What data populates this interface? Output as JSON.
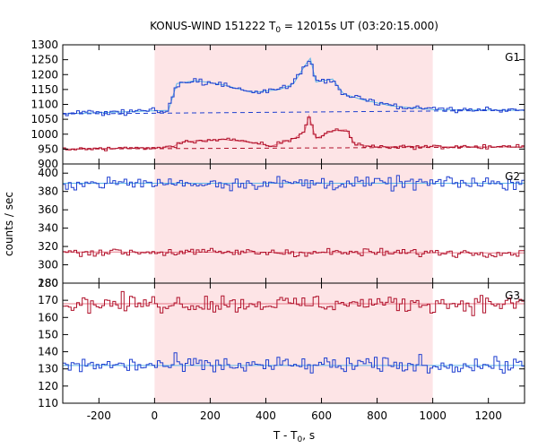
{
  "chart_data": {
    "type": "line",
    "title_main": "KONUS-WIND 151222 T",
    "title_sub": "0",
    "title_rest": " = 12015s UT (03:20:15.000)",
    "xlabel_main": "T - T",
    "xlabel_sub": "0",
    "xlabel_rest": ", s",
    "ylabel": "counts / sec",
    "xlim": [
      -330,
      1330
    ],
    "x_ticks": [
      -200,
      0,
      200,
      400,
      600,
      800,
      1000,
      1200
    ],
    "x_tick_labels": [
      "-200",
      "0",
      "200",
      "400",
      "600",
      "800",
      "1000",
      "1200"
    ],
    "shaded_interval": [
      0,
      1000
    ],
    "colors": {
      "shade": "#fde4e6",
      "g_high": "#1f3fd0",
      "g_high_smooth": "#5fb8e8",
      "g_low": "#b0102a",
      "g_low_smooth": "#e87888",
      "frame": "#000000"
    },
    "panels": [
      {
        "label": "G1",
        "ylim": [
          900,
          1300
        ],
        "y_ticks": [
          900,
          950,
          1000,
          1050,
          1100,
          1150,
          1200,
          1250,
          1300
        ],
        "y_tick_labels": [
          "900",
          "950",
          "1000",
          "1050",
          "1100",
          "1150",
          "1200",
          "1250",
          "1300"
        ],
        "series": [
          {
            "role": "high",
            "background": [
              [
                -330,
                1068
              ],
              [
                1330,
                1080
              ]
            ],
            "shape": [
              [
                -330,
                1068
              ],
              [
                50,
                1080
              ],
              [
                80,
                1170
              ],
              [
                150,
                1180
              ],
              [
                250,
                1165
              ],
              [
                350,
                1140
              ],
              [
                450,
                1150
              ],
              [
                500,
                1170
              ],
              [
                540,
                1230
              ],
              [
                560,
                1255
              ],
              [
                580,
                1175
              ],
              [
                640,
                1185
              ],
              [
                680,
                1135
              ],
              [
                750,
                1115
              ],
              [
                850,
                1095
              ],
              [
                1000,
                1082
              ],
              [
                1330,
                1080
              ]
            ],
            "noise": 7
          },
          {
            "role": "low",
            "background": [
              [
                -330,
                950
              ],
              [
                1330,
                957
              ]
            ],
            "shape": [
              [
                -330,
                950
              ],
              [
                60,
                955
              ],
              [
                100,
                975
              ],
              [
                250,
                982
              ],
              [
                350,
                972
              ],
              [
                420,
                960
              ],
              [
                500,
                985
              ],
              [
                540,
                1010
              ],
              [
                555,
                1062
              ],
              [
                580,
                985
              ],
              [
                640,
                1012
              ],
              [
                690,
                1015
              ],
              [
                720,
                965
              ],
              [
                800,
                958
              ],
              [
                1330,
                957
              ]
            ],
            "noise": 5
          }
        ]
      },
      {
        "label": "G2",
        "ylim": [
          280,
          410
        ],
        "y_ticks": [
          280,
          300,
          320,
          340,
          360,
          380,
          400
        ],
        "y_tick_labels": [
          "280",
          "300",
          "320",
          "340",
          "360",
          "380",
          "400"
        ],
        "series": [
          {
            "role": "high",
            "background": [
              [
                -330,
                389
              ],
              [
                1330,
                389
              ]
            ],
            "shape": [
              [
                -330,
                389
              ],
              [
                1330,
                389
              ]
            ],
            "noise": 5
          },
          {
            "role": "low",
            "background": [
              [
                -330,
                314
              ],
              [
                1330,
                313
              ]
            ],
            "shape": [
              [
                -330,
                314
              ],
              [
                1330,
                313
              ]
            ],
            "noise": 3
          }
        ]
      },
      {
        "label": "G3",
        "ylim": [
          110,
          180
        ],
        "y_ticks": [
          110,
          120,
          130,
          140,
          150,
          160,
          170,
          180
        ],
        "y_tick_labels": [
          "110",
          "120",
          "130",
          "140",
          "150",
          "160",
          "170",
          "180"
        ],
        "series": [
          {
            "role": "low",
            "background": [
              [
                -330,
                168
              ],
              [
                1330,
                168
              ]
            ],
            "shape": [
              [
                -330,
                168
              ],
              [
                1330,
                168
              ]
            ],
            "noise": 3.5
          },
          {
            "role": "high",
            "background": [
              [
                -330,
                132
              ],
              [
                1330,
                132
              ]
            ],
            "shape": [
              [
                -330,
                132
              ],
              [
                1330,
                132
              ]
            ],
            "noise": 3.5
          }
        ]
      }
    ]
  }
}
